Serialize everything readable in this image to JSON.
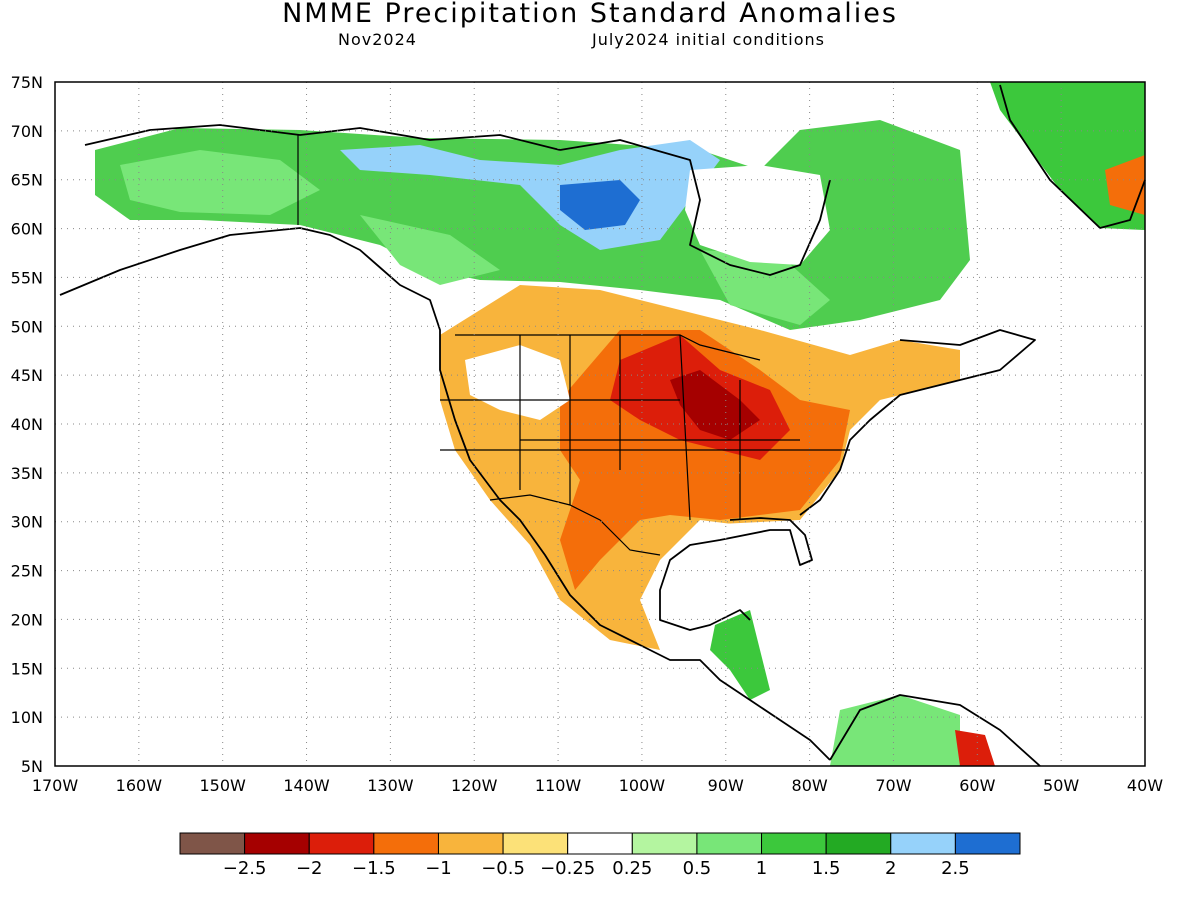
{
  "header": {
    "title": "NMME Precipitation Standard Anomalies",
    "target_month": "Nov2024",
    "init_conditions": "July2024 initial conditions"
  },
  "axes": {
    "lon_labels": [
      "170W",
      "160W",
      "150W",
      "140W",
      "130W",
      "120W",
      "110W",
      "100W",
      "90W",
      "80W",
      "70W",
      "60W",
      "50W",
      "40W"
    ],
    "lat_labels": [
      "5N",
      "10N",
      "15N",
      "20N",
      "25N",
      "30N",
      "35N",
      "40N",
      "45N",
      "50N",
      "55N",
      "60N",
      "65N",
      "70N",
      "75N"
    ],
    "lon_range": [
      -170,
      -40
    ],
    "lat_range": [
      5,
      75
    ],
    "grid": "dotted"
  },
  "colorbar": {
    "colors": [
      "#7f5548",
      "#a50000",
      "#dc1e0a",
      "#f46e0a",
      "#f8b43c",
      "#fce178",
      "#ffffff",
      "#b4f5a0",
      "#78e678",
      "#3cc83c",
      "#23aa23",
      "#96d2fa",
      "#1e6ed2"
    ],
    "tick_labels": [
      "−2.5",
      "−2",
      "−1.5",
      "−1",
      "−0.5",
      "−0.25",
      "0.25",
      "0.5",
      "1",
      "1.5",
      "2",
      "2.5"
    ]
  }
}
